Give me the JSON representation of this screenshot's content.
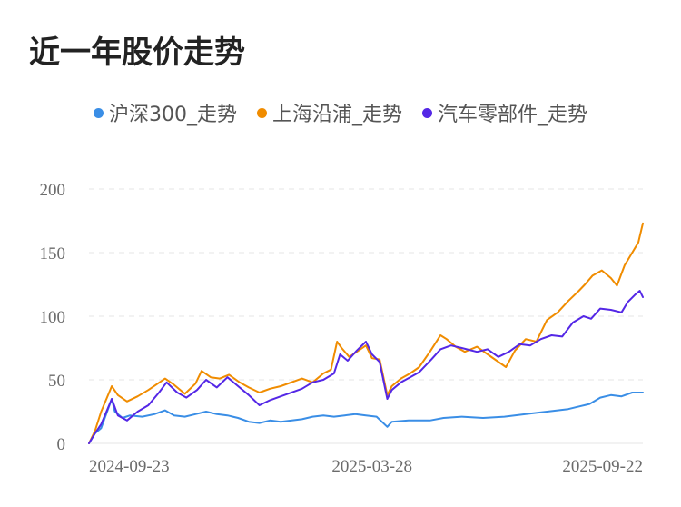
{
  "title": "近一年股价走势",
  "chart_data": {
    "type": "line",
    "title": "近一年股价走势",
    "xlabel": "",
    "ylabel": "",
    "ylim": [
      0,
      200
    ],
    "yticks": [
      0,
      50,
      100,
      150,
      200
    ],
    "xticks": [
      "2024-09-23",
      "2025-03-28",
      "2025-09-22"
    ],
    "grid": true,
    "legend_position": "top-center",
    "x_range": [
      "2024-09-23",
      "2025-09-22"
    ],
    "series": [
      {
        "name": "沪深300_走势",
        "color": "#3a8ee6",
        "points": [
          [
            "2024-09-23",
            0
          ],
          [
            "2024-09-27",
            8
          ],
          [
            "2024-10-01",
            12
          ],
          [
            "2024-10-08",
            35
          ],
          [
            "2024-10-10",
            25
          ],
          [
            "2024-10-15",
            20
          ],
          [
            "2024-10-20",
            22
          ],
          [
            "2024-10-28",
            21
          ],
          [
            "2024-11-05",
            23
          ],
          [
            "2024-11-12",
            26
          ],
          [
            "2024-11-18",
            22
          ],
          [
            "2024-11-25",
            21
          ],
          [
            "2024-12-02",
            23
          ],
          [
            "2024-12-09",
            25
          ],
          [
            "2024-12-16",
            23
          ],
          [
            "2024-12-23",
            22
          ],
          [
            "2024-12-30",
            20
          ],
          [
            "2025-01-06",
            17
          ],
          [
            "2025-01-13",
            16
          ],
          [
            "2025-01-20",
            18
          ],
          [
            "2025-01-27",
            17
          ],
          [
            "2025-02-10",
            19
          ],
          [
            "2025-02-17",
            21
          ],
          [
            "2025-02-24",
            22
          ],
          [
            "2025-03-03",
            21
          ],
          [
            "2025-03-10",
            22
          ],
          [
            "2025-03-17",
            23
          ],
          [
            "2025-03-24",
            22
          ],
          [
            "2025-03-31",
            21
          ],
          [
            "2025-04-07",
            13
          ],
          [
            "2025-04-10",
            17
          ],
          [
            "2025-04-21",
            18
          ],
          [
            "2025-05-05",
            18
          ],
          [
            "2025-05-14",
            20
          ],
          [
            "2025-05-26",
            21
          ],
          [
            "2025-06-09",
            20
          ],
          [
            "2025-06-23",
            21
          ],
          [
            "2025-07-07",
            23
          ],
          [
            "2025-07-21",
            25
          ],
          [
            "2025-08-04",
            27
          ],
          [
            "2025-08-18",
            31
          ],
          [
            "2025-08-25",
            36
          ],
          [
            "2025-09-01",
            38
          ],
          [
            "2025-09-08",
            37
          ],
          [
            "2025-09-15",
            40
          ],
          [
            "2025-09-22",
            40
          ]
        ]
      },
      {
        "name": "上海沿浦_走势",
        "color": "#f08c00",
        "points": [
          [
            "2024-09-23",
            0
          ],
          [
            "2024-09-27",
            10
          ],
          [
            "2024-10-01",
            25
          ],
          [
            "2024-10-08",
            45
          ],
          [
            "2024-10-12",
            38
          ],
          [
            "2024-10-18",
            33
          ],
          [
            "2024-10-25",
            37
          ],
          [
            "2024-11-01",
            42
          ],
          [
            "2024-11-06",
            46
          ],
          [
            "2024-11-12",
            51
          ],
          [
            "2024-11-18",
            46
          ],
          [
            "2024-11-25",
            39
          ],
          [
            "2024-12-02",
            47
          ],
          [
            "2024-12-06",
            57
          ],
          [
            "2024-12-12",
            52
          ],
          [
            "2024-12-18",
            51
          ],
          [
            "2024-12-24",
            54
          ],
          [
            "2024-12-31",
            48
          ],
          [
            "2025-01-06",
            44
          ],
          [
            "2025-01-13",
            40
          ],
          [
            "2025-01-20",
            43
          ],
          [
            "2025-01-27",
            45
          ],
          [
            "2025-02-10",
            51
          ],
          [
            "2025-02-17",
            48
          ],
          [
            "2025-02-24",
            55
          ],
          [
            "2025-03-01",
            58
          ],
          [
            "2025-03-05",
            80
          ],
          [
            "2025-03-08",
            75
          ],
          [
            "2025-03-13",
            68
          ],
          [
            "2025-03-18",
            72
          ],
          [
            "2025-03-24",
            77
          ],
          [
            "2025-03-28",
            67
          ],
          [
            "2025-04-02",
            66
          ],
          [
            "2025-04-07",
            38
          ],
          [
            "2025-04-10",
            45
          ],
          [
            "2025-04-16",
            51
          ],
          [
            "2025-04-22",
            55
          ],
          [
            "2025-04-28",
            60
          ],
          [
            "2025-05-05",
            72
          ],
          [
            "2025-05-12",
            85
          ],
          [
            "2025-05-16",
            82
          ],
          [
            "2025-05-22",
            76
          ],
          [
            "2025-05-28",
            72
          ],
          [
            "2025-06-05",
            76
          ],
          [
            "2025-06-12",
            70
          ],
          [
            "2025-06-18",
            65
          ],
          [
            "2025-06-24",
            60
          ],
          [
            "2025-06-30",
            73
          ],
          [
            "2025-07-07",
            82
          ],
          [
            "2025-07-14",
            80
          ],
          [
            "2025-07-21",
            97
          ],
          [
            "2025-07-28",
            103
          ],
          [
            "2025-08-04",
            112
          ],
          [
            "2025-08-11",
            120
          ],
          [
            "2025-08-15",
            125
          ],
          [
            "2025-08-20",
            132
          ],
          [
            "2025-08-26",
            136
          ],
          [
            "2025-09-01",
            130
          ],
          [
            "2025-09-05",
            124
          ],
          [
            "2025-09-10",
            140
          ],
          [
            "2025-09-15",
            150
          ],
          [
            "2025-09-19",
            158
          ],
          [
            "2025-09-22",
            173
          ]
        ]
      },
      {
        "name": "汽车零部件_走势",
        "color": "#5427e6",
        "points": [
          [
            "2024-09-23",
            0
          ],
          [
            "2024-09-27",
            8
          ],
          [
            "2024-10-01",
            15
          ],
          [
            "2024-10-08",
            35
          ],
          [
            "2024-10-12",
            22
          ],
          [
            "2024-10-18",
            18
          ],
          [
            "2024-10-25",
            25
          ],
          [
            "2024-11-01",
            30
          ],
          [
            "2024-11-08",
            40
          ],
          [
            "2024-11-13",
            48
          ],
          [
            "2024-11-20",
            40
          ],
          [
            "2024-11-26",
            36
          ],
          [
            "2024-12-03",
            42
          ],
          [
            "2024-12-09",
            50
          ],
          [
            "2024-12-16",
            44
          ],
          [
            "2024-12-23",
            52
          ],
          [
            "2024-12-30",
            45
          ],
          [
            "2025-01-06",
            38
          ],
          [
            "2025-01-13",
            30
          ],
          [
            "2025-01-20",
            34
          ],
          [
            "2025-01-27",
            37
          ],
          [
            "2025-02-10",
            43
          ],
          [
            "2025-02-17",
            48
          ],
          [
            "2025-02-24",
            50
          ],
          [
            "2025-03-03",
            55
          ],
          [
            "2025-03-07",
            70
          ],
          [
            "2025-03-12",
            65
          ],
          [
            "2025-03-18",
            73
          ],
          [
            "2025-03-24",
            80
          ],
          [
            "2025-03-28",
            70
          ],
          [
            "2025-04-02",
            64
          ],
          [
            "2025-04-07",
            35
          ],
          [
            "2025-04-10",
            42
          ],
          [
            "2025-04-16",
            48
          ],
          [
            "2025-04-22",
            52
          ],
          [
            "2025-04-28",
            56
          ],
          [
            "2025-05-06",
            66
          ],
          [
            "2025-05-12",
            74
          ],
          [
            "2025-05-19",
            77
          ],
          [
            "2025-05-26",
            75
          ],
          [
            "2025-06-05",
            72
          ],
          [
            "2025-06-12",
            74
          ],
          [
            "2025-06-19",
            68
          ],
          [
            "2025-06-26",
            72
          ],
          [
            "2025-07-03",
            78
          ],
          [
            "2025-07-10",
            77
          ],
          [
            "2025-07-17",
            82
          ],
          [
            "2025-07-24",
            85
          ],
          [
            "2025-07-31",
            84
          ],
          [
            "2025-08-07",
            95
          ],
          [
            "2025-08-14",
            100
          ],
          [
            "2025-08-19",
            98
          ],
          [
            "2025-08-25",
            106
          ],
          [
            "2025-09-01",
            105
          ],
          [
            "2025-09-08",
            103
          ],
          [
            "2025-09-12",
            111
          ],
          [
            "2025-09-17",
            117
          ],
          [
            "2025-09-20",
            120
          ],
          [
            "2025-09-22",
            115
          ]
        ]
      }
    ]
  }
}
